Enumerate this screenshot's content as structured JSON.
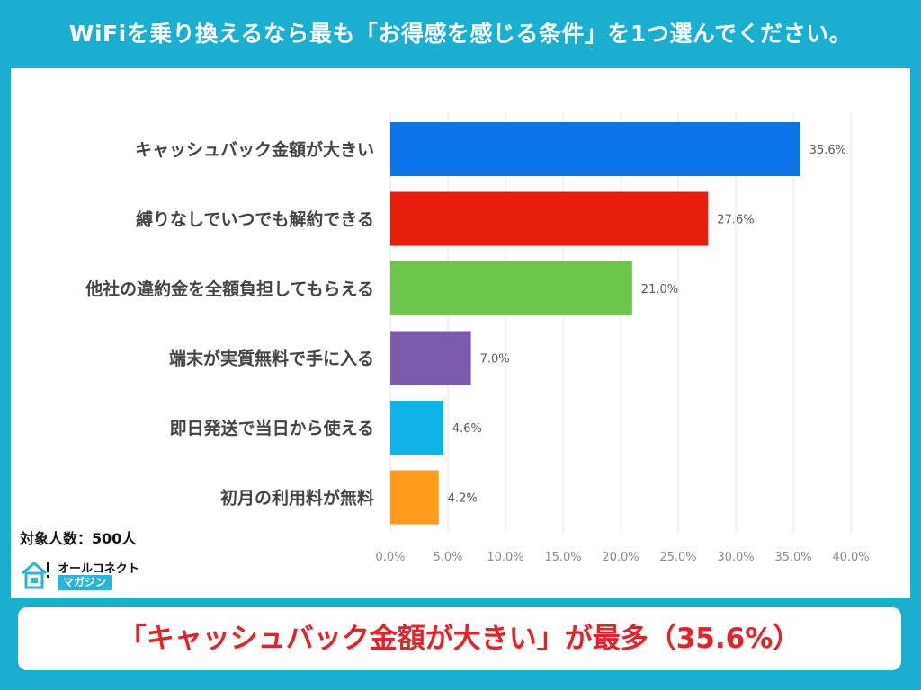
{
  "title": "WiFiを乗り換えるなら最も「お得感を感じる条件」を1つ選んでください。",
  "sample_note": "対象人数：500人",
  "logo": {
    "name": "オールコネクト",
    "sub": "マガジン",
    "icon": "house-logo-icon"
  },
  "banner": "「キャッシュバック金額が大きい」が最多（35.6%）",
  "colors": {
    "background": "#1aaed0",
    "banner_text": "#e8202a"
  },
  "chart_data": {
    "type": "bar",
    "orientation": "horizontal",
    "categories": [
      "キャッシュバック金額が大きい",
      "縛りなしでいつでも解約できる",
      "他社の違約金を全額負担してもらえる",
      "端末が実質無料で手に入る",
      "即日発送で当日から使える",
      "初月の利用料が無料"
    ],
    "values": [
      35.6,
      27.6,
      21.0,
      7.0,
      4.6,
      4.2
    ],
    "value_labels": [
      "35.6%",
      "27.6%",
      "21.0%",
      "7.0%",
      "4.6%",
      "4.2%"
    ],
    "colors": [
      "#0a74e8",
      "#e81c0c",
      "#6cc64a",
      "#7b5bac",
      "#10b3e6",
      "#ff9b1c"
    ],
    "xlim": [
      0,
      40
    ],
    "xticks": [
      0,
      5,
      10,
      15,
      20,
      25,
      30,
      35,
      40
    ],
    "xtick_labels": [
      "0.0%",
      "5.0%",
      "10.0%",
      "15.0%",
      "20.0%",
      "25.0%",
      "30.0%",
      "35.0%",
      "40.0%"
    ],
    "grid": true,
    "legend": "none"
  }
}
